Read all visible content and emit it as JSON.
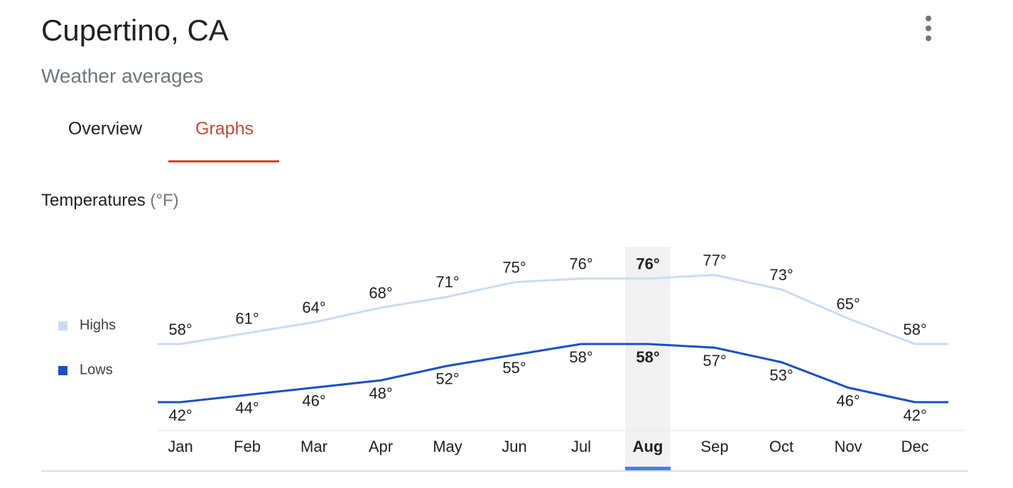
{
  "header": {
    "title": "Cupertino, CA",
    "subtitle": "Weather averages"
  },
  "tabs": [
    "Overview",
    "Graphs"
  ],
  "chart_data": {
    "type": "line",
    "title": "Temperatures",
    "unit": "(°F)",
    "categories": [
      "Jan",
      "Feb",
      "Mar",
      "Apr",
      "May",
      "Jun",
      "Jul",
      "Aug",
      "Sep",
      "Oct",
      "Nov",
      "Dec"
    ],
    "highlight": 7,
    "series": [
      {
        "name": "Highs",
        "color": "#c9dcf6",
        "values": [
          58,
          61,
          64,
          68,
          71,
          75,
          76,
          76,
          77,
          73,
          65,
          58
        ],
        "value_labels": [
          "58°",
          "61°",
          "64°",
          "68°",
          "71°",
          "75°",
          "76°",
          "76°",
          "77°",
          "73°",
          "65°",
          "58°"
        ]
      },
      {
        "name": "Lows",
        "color": "#1a4fc7",
        "values": [
          42,
          44,
          46,
          48,
          52,
          55,
          58,
          58,
          57,
          53,
          46,
          42
        ],
        "value_labels": [
          "42°",
          "44°",
          "46°",
          "48°",
          "52°",
          "55°",
          "58°",
          "58°",
          "57°",
          "53°",
          "46°",
          "42°"
        ]
      }
    ]
  }
}
